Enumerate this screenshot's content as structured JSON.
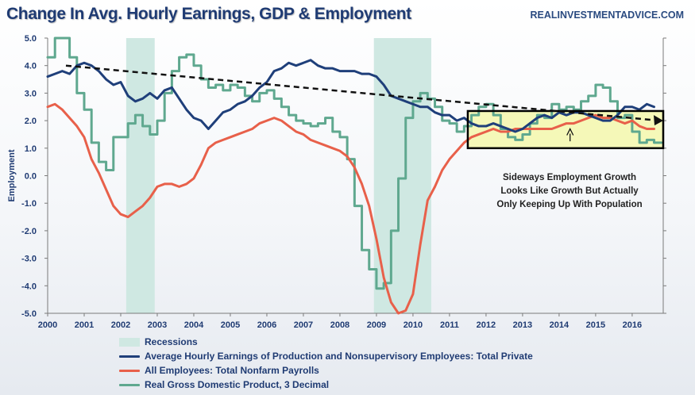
{
  "header": {
    "title": "Change In Avg. Hourly Earnings, GDP & Employment",
    "source": "REALINVESTMENTADVICE.COM"
  },
  "annotation": {
    "lines": [
      "Sideways Employment Growth",
      "Looks Like Growth But Actually",
      "Only Keeping Up With Population"
    ]
  },
  "legend": {
    "recessions": "Recessions",
    "earnings": "Average Hourly Earnings of Production and Nonsupervisory Employees: Total Private",
    "payrolls": "All Employees: Total Nonfarm Payrolls",
    "gdp": "Real Gross Domestic Product, 3 Decimal"
  },
  "colors": {
    "earnings": "#1f3f7a",
    "payrolls": "#e8604a",
    "gdp": "#5fa88f",
    "recession": "#cfe8e2",
    "highlight": "#f4f7b0",
    "title": "#1f3b73"
  },
  "chart_data": {
    "type": "line",
    "ylabel": "Employment",
    "ylim": [
      -5.0,
      5.0
    ],
    "xlim": [
      2000.0,
      2016.85
    ],
    "y_ticks": [
      "5.0",
      "4.0",
      "3.0",
      "2.0",
      "1.0",
      "0.0",
      "-1.0",
      "-2.0",
      "-3.0",
      "-4.0",
      "-5.0"
    ],
    "x_ticks": [
      "2000",
      "2001",
      "2002",
      "2003",
      "2004",
      "2005",
      "2006",
      "2007",
      "2008",
      "2009",
      "2010",
      "2011",
      "2012",
      "2013",
      "2014",
      "2015",
      "2016"
    ],
    "recessions": [
      [
        2002.15,
        2002.93
      ],
      [
        2008.93,
        2010.5
      ]
    ],
    "highlight_box": {
      "x": [
        2011.5,
        2016.85
      ],
      "y": [
        1.0,
        2.35
      ]
    },
    "trend_line": {
      "x": [
        2000.5,
        2016.85
      ],
      "y": [
        4.0,
        2.0
      ]
    },
    "annotation_arrow": {
      "from": [
        2014.3,
        1.25
      ],
      "to": [
        2014.3,
        1.7
      ]
    },
    "series": [
      {
        "name": "Average Hourly Earnings of Production and Nonsupervisory Employees: Total Private",
        "x": [
          2000.0,
          2000.2,
          2000.4,
          2000.6,
          2000.8,
          2001.0,
          2001.2,
          2001.4,
          2001.6,
          2001.8,
          2002.0,
          2002.2,
          2002.4,
          2002.6,
          2002.8,
          2003.0,
          2003.2,
          2003.4,
          2003.6,
          2003.8,
          2004.0,
          2004.2,
          2004.4,
          2004.6,
          2004.8,
          2005.0,
          2005.2,
          2005.4,
          2005.6,
          2005.8,
          2006.0,
          2006.2,
          2006.4,
          2006.6,
          2006.8,
          2007.0,
          2007.2,
          2007.4,
          2007.6,
          2007.8,
          2008.0,
          2008.2,
          2008.4,
          2008.6,
          2008.8,
          2009.0,
          2009.2,
          2009.4,
          2009.6,
          2009.8,
          2010.0,
          2010.2,
          2010.4,
          2010.6,
          2010.8,
          2011.0,
          2011.2,
          2011.4,
          2011.6,
          2011.8,
          2012.0,
          2012.2,
          2012.4,
          2012.6,
          2012.8,
          2013.0,
          2013.2,
          2013.4,
          2013.6,
          2013.8,
          2014.0,
          2014.2,
          2014.4,
          2014.6,
          2014.8,
          2015.0,
          2015.2,
          2015.4,
          2015.6,
          2015.8,
          2016.0,
          2016.2,
          2016.4,
          2016.6
        ],
        "values": [
          3.6,
          3.7,
          3.8,
          3.7,
          4.0,
          4.1,
          4.0,
          3.8,
          3.5,
          3.3,
          3.4,
          2.9,
          2.7,
          2.8,
          3.0,
          2.8,
          3.1,
          3.2,
          2.8,
          2.4,
          2.1,
          2.0,
          1.7,
          2.0,
          2.3,
          2.4,
          2.6,
          2.7,
          2.9,
          3.2,
          3.4,
          3.8,
          3.9,
          4.1,
          4.0,
          4.1,
          4.2,
          4.0,
          3.9,
          3.9,
          3.8,
          3.8,
          3.8,
          3.7,
          3.7,
          3.6,
          3.3,
          2.9,
          2.8,
          2.7,
          2.6,
          2.5,
          2.5,
          2.3,
          2.2,
          2.2,
          2.0,
          2.1,
          1.9,
          1.8,
          1.8,
          1.9,
          1.8,
          1.7,
          1.6,
          1.7,
          1.9,
          2.1,
          2.2,
          2.1,
          2.3,
          2.2,
          2.3,
          2.3,
          2.2,
          2.1,
          2.0,
          2.0,
          2.2,
          2.5,
          2.5,
          2.4,
          2.6,
          2.5
        ]
      },
      {
        "name": "All Employees: Total Nonfarm Payrolls",
        "x": [
          2000.0,
          2000.2,
          2000.4,
          2000.6,
          2000.8,
          2001.0,
          2001.2,
          2001.4,
          2001.6,
          2001.8,
          2002.0,
          2002.2,
          2002.4,
          2002.6,
          2002.8,
          2003.0,
          2003.2,
          2003.4,
          2003.6,
          2003.8,
          2004.0,
          2004.2,
          2004.4,
          2004.6,
          2004.8,
          2005.0,
          2005.2,
          2005.4,
          2005.6,
          2005.8,
          2006.0,
          2006.2,
          2006.4,
          2006.6,
          2006.8,
          2007.0,
          2007.2,
          2007.4,
          2007.6,
          2007.8,
          2008.0,
          2008.2,
          2008.4,
          2008.6,
          2008.8,
          2009.0,
          2009.2,
          2009.4,
          2009.6,
          2009.8,
          2010.0,
          2010.2,
          2010.4,
          2010.6,
          2010.8,
          2011.0,
          2011.2,
          2011.4,
          2011.6,
          2011.8,
          2012.0,
          2012.2,
          2012.4,
          2012.6,
          2012.8,
          2013.0,
          2013.2,
          2013.4,
          2013.6,
          2013.8,
          2014.0,
          2014.2,
          2014.4,
          2014.6,
          2014.8,
          2015.0,
          2015.2,
          2015.4,
          2015.6,
          2015.8,
          2016.0,
          2016.2,
          2016.4,
          2016.6
        ],
        "values": [
          2.5,
          2.6,
          2.4,
          2.1,
          1.8,
          1.4,
          0.6,
          0.1,
          -0.5,
          -1.1,
          -1.4,
          -1.5,
          -1.3,
          -1.1,
          -0.8,
          -0.4,
          -0.3,
          -0.3,
          -0.4,
          -0.3,
          -0.1,
          0.4,
          1.0,
          1.2,
          1.3,
          1.4,
          1.5,
          1.6,
          1.7,
          1.9,
          2.0,
          2.1,
          2.0,
          1.8,
          1.6,
          1.5,
          1.3,
          1.2,
          1.1,
          1.0,
          0.9,
          0.7,
          0.3,
          -0.3,
          -1.1,
          -2.3,
          -3.7,
          -4.6,
          -5.0,
          -4.9,
          -4.3,
          -2.5,
          -0.9,
          -0.4,
          0.2,
          0.6,
          0.9,
          1.2,
          1.4,
          1.5,
          1.6,
          1.7,
          1.6,
          1.6,
          1.7,
          1.7,
          1.7,
          1.7,
          1.7,
          1.7,
          1.8,
          1.9,
          1.9,
          2.0,
          2.1,
          2.2,
          2.1,
          2.1,
          2.0,
          1.9,
          2.0,
          1.8,
          1.7,
          1.7
        ]
      },
      {
        "name": "Real Gross Domestic Product, 3 Decimal",
        "x": [
          2000.0,
          2000.2,
          2000.4,
          2000.6,
          2000.8,
          2001.0,
          2001.2,
          2001.4,
          2001.6,
          2001.8,
          2002.0,
          2002.2,
          2002.4,
          2002.6,
          2002.8,
          2003.0,
          2003.2,
          2003.4,
          2003.6,
          2003.8,
          2004.0,
          2004.2,
          2004.4,
          2004.6,
          2004.8,
          2005.0,
          2005.2,
          2005.4,
          2005.6,
          2005.8,
          2006.0,
          2006.2,
          2006.4,
          2006.6,
          2006.8,
          2007.0,
          2007.2,
          2007.4,
          2007.6,
          2007.8,
          2008.0,
          2008.2,
          2008.4,
          2008.6,
          2008.8,
          2009.0,
          2009.2,
          2009.4,
          2009.6,
          2009.8,
          2010.0,
          2010.2,
          2010.4,
          2010.6,
          2010.8,
          2011.0,
          2011.2,
          2011.4,
          2011.6,
          2011.8,
          2012.0,
          2012.2,
          2012.4,
          2012.6,
          2012.8,
          2013.0,
          2013.2,
          2013.4,
          2013.6,
          2013.8,
          2014.0,
          2014.2,
          2014.4,
          2014.6,
          2014.8,
          2015.0,
          2015.2,
          2015.4,
          2015.6,
          2015.8,
          2016.0,
          2016.2,
          2016.4,
          2016.6
        ],
        "values": [
          4.3,
          5.0,
          5.0,
          4.3,
          3.0,
          2.4,
          1.2,
          0.5,
          0.2,
          1.4,
          1.4,
          1.9,
          2.2,
          1.8,
          1.5,
          2.0,
          3.0,
          3.8,
          4.3,
          4.4,
          4.0,
          3.5,
          3.2,
          3.3,
          3.1,
          3.3,
          3.2,
          2.9,
          2.7,
          3.0,
          3.1,
          2.8,
          2.5,
          2.2,
          2.0,
          1.9,
          1.8,
          1.9,
          2.1,
          1.6,
          1.4,
          0.6,
          -1.1,
          -2.7,
          -3.4,
          -4.1,
          -3.9,
          -2.0,
          -0.1,
          2.1,
          2.7,
          3.0,
          2.8,
          2.5,
          2.0,
          1.9,
          1.6,
          1.8,
          2.2,
          2.5,
          2.6,
          2.2,
          1.7,
          1.4,
          1.3,
          1.5,
          1.9,
          2.2,
          2.1,
          2.6,
          2.4,
          2.5,
          2.4,
          2.7,
          2.9,
          3.3,
          3.2,
          2.7,
          2.1,
          2.2,
          1.6,
          1.2,
          1.3,
          1.2
        ]
      }
    ]
  }
}
